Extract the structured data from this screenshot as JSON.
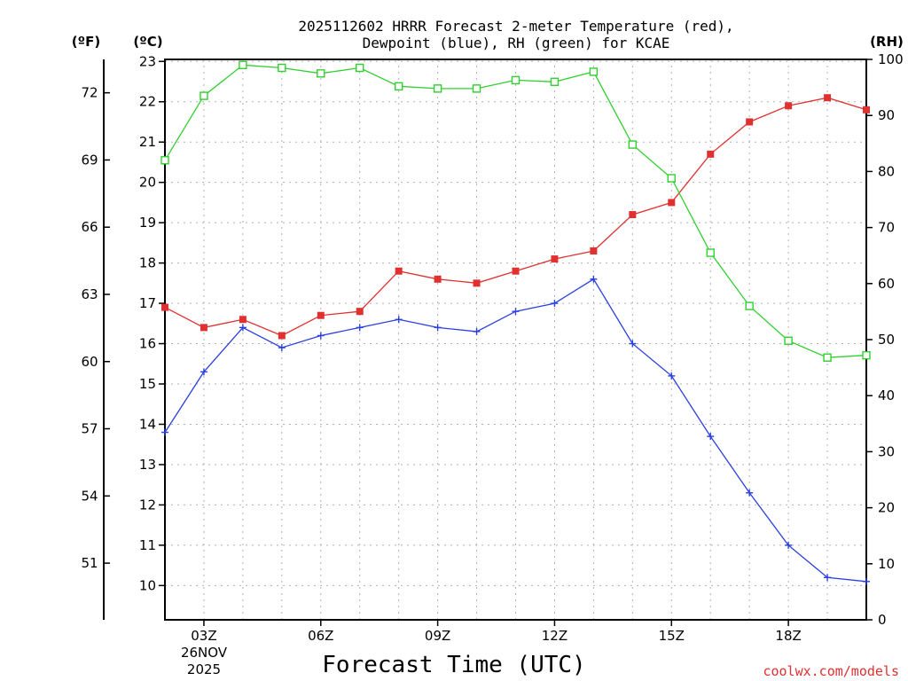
{
  "chart_data": {
    "type": "line",
    "title_line1": "2025112602 HRRR Forecast 2-meter Temperature (red),",
    "title_line2": "Dewpoint (blue), RH (green) for KCAE",
    "xlabel": "Forecast Time (UTC)",
    "unit_f": "(ºF)",
    "unit_c": "(ºC)",
    "unit_rh": "(RH)",
    "credit": "coolwx.com/models",
    "date_line1": "26NOV",
    "date_line2": "2025",
    "x_hours": [
      2,
      3,
      4,
      5,
      6,
      7,
      8,
      9,
      10,
      11,
      12,
      13,
      14,
      15,
      16,
      17,
      18,
      19,
      20
    ],
    "x_ticks": [
      {
        "hour": 3,
        "label": "03Z"
      },
      {
        "hour": 6,
        "label": "06Z"
      },
      {
        "hour": 9,
        "label": "09Z"
      },
      {
        "hour": 12,
        "label": "12Z"
      },
      {
        "hour": 15,
        "label": "15Z"
      },
      {
        "hour": 18,
        "label": "18Z"
      }
    ],
    "ylim_c": [
      9.15,
      23.05
    ],
    "yticks_c": [
      "10",
      "11",
      "12",
      "13",
      "14",
      "15",
      "16",
      "17",
      "18",
      "19",
      "20",
      "21",
      "22",
      "23"
    ],
    "yticks_f": [
      "51",
      "54",
      "57",
      "60",
      "63",
      "66",
      "69",
      "72"
    ],
    "ylim_rh": [
      0,
      100
    ],
    "yticks_rh": [
      "0",
      "10",
      "20",
      "30",
      "40",
      "50",
      "60",
      "70",
      "80",
      "90",
      "100"
    ],
    "series": [
      {
        "name": "2-meter Temperature",
        "color": "#e03030",
        "axis": "C",
        "marker": "filled-square",
        "values": [
          16.9,
          16.4,
          16.6,
          16.2,
          16.7,
          16.8,
          17.8,
          17.6,
          17.5,
          17.8,
          18.1,
          18.3,
          19.2,
          19.5,
          20.7,
          21.5,
          21.9,
          22.1,
          21.8
        ]
      },
      {
        "name": "Dewpoint",
        "color": "#2a3fe0",
        "axis": "C",
        "marker": "plus",
        "values": [
          13.8,
          15.3,
          16.4,
          15.9,
          16.2,
          16.4,
          16.6,
          16.4,
          16.3,
          16.8,
          17.0,
          17.6,
          16.0,
          15.2,
          13.7,
          12.3,
          11.0,
          10.2,
          10.1
        ]
      },
      {
        "name": "Relative Humidity",
        "color": "#30d030",
        "axis": "RH",
        "marker": "open-square",
        "values": [
          82,
          93.5,
          99,
          98.5,
          97.5,
          98.5,
          95.2,
          94.8,
          94.8,
          96.3,
          96,
          97.8,
          84.8,
          78.8,
          65.5,
          56,
          49.8,
          46.8,
          47.2
        ]
      }
    ]
  }
}
